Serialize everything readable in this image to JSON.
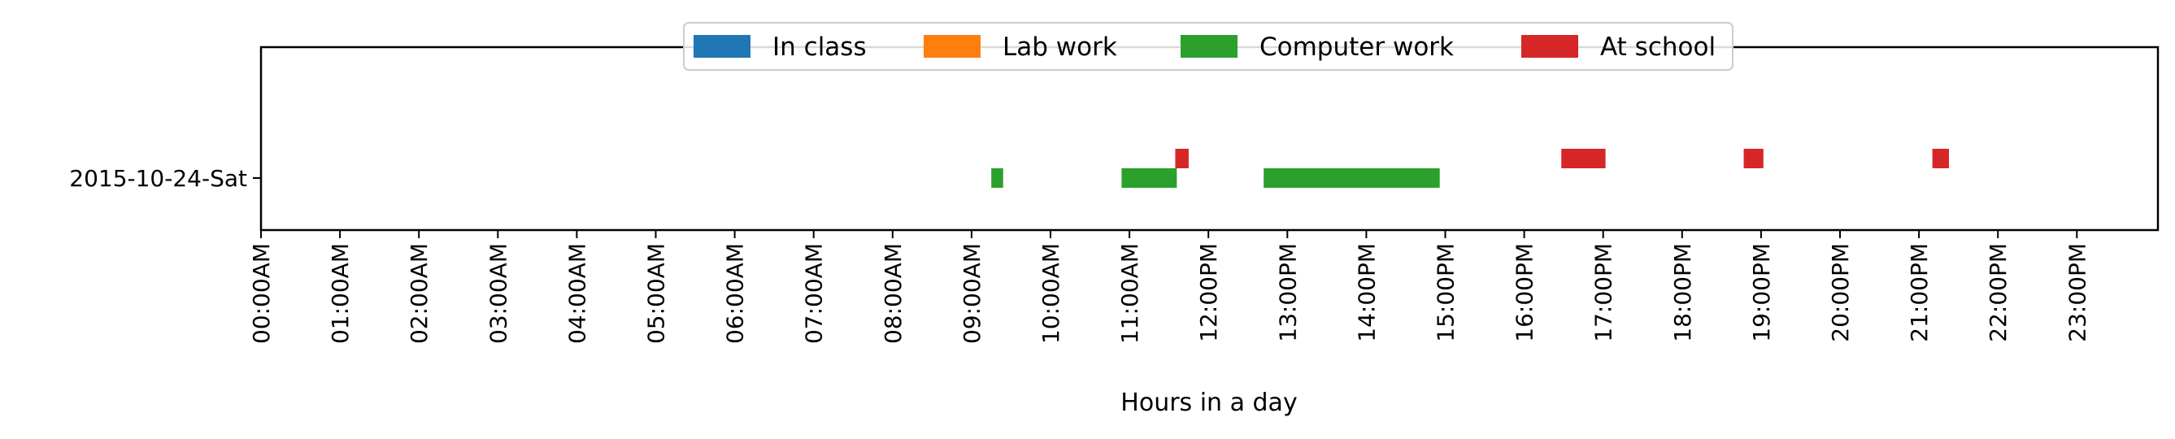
{
  "chart_data": {
    "type": "bar",
    "orientation": "horizontal-timeline",
    "xlabel": "Hours in a day",
    "ylabel": "",
    "xlim": [
      0,
      24
    ],
    "x_ticks": [
      {
        "value": 0,
        "label": "00:00AM"
      },
      {
        "value": 1,
        "label": "01:00AM"
      },
      {
        "value": 2,
        "label": "02:00AM"
      },
      {
        "value": 3,
        "label": "03:00AM"
      },
      {
        "value": 4,
        "label": "04:00AM"
      },
      {
        "value": 5,
        "label": "05:00AM"
      },
      {
        "value": 6,
        "label": "06:00AM"
      },
      {
        "value": 7,
        "label": "07:00AM"
      },
      {
        "value": 8,
        "label": "08:00AM"
      },
      {
        "value": 9,
        "label": "09:00AM"
      },
      {
        "value": 10,
        "label": "10:00AM"
      },
      {
        "value": 11,
        "label": "11:00AM"
      },
      {
        "value": 12,
        "label": "12:00PM"
      },
      {
        "value": 13,
        "label": "13:00PM"
      },
      {
        "value": 14,
        "label": "14:00PM"
      },
      {
        "value": 15,
        "label": "15:00PM"
      },
      {
        "value": 16,
        "label": "16:00PM"
      },
      {
        "value": 17,
        "label": "17:00PM"
      },
      {
        "value": 18,
        "label": "18:00PM"
      },
      {
        "value": 19,
        "label": "19:00PM"
      },
      {
        "value": 20,
        "label": "20:00PM"
      },
      {
        "value": 21,
        "label": "21:00PM"
      },
      {
        "value": 22,
        "label": "22:00PM"
      },
      {
        "value": 23,
        "label": "23:00PM"
      }
    ],
    "categories": [
      "2015-10-24-Sat"
    ],
    "legend": {
      "placement": "top-center",
      "ncol": 4
    },
    "series": [
      {
        "name": "In class",
        "color": "#1f77b4",
        "intervals": []
      },
      {
        "name": "Lab work",
        "color": "#ff7f0e",
        "intervals": []
      },
      {
        "name": "Computer work",
        "color": "#2ca02c",
        "intervals": [
          {
            "start": 9.25,
            "end": 9.4
          },
          {
            "start": 10.9,
            "end": 11.6
          },
          {
            "start": 12.7,
            "end": 14.93
          }
        ]
      },
      {
        "name": "At school",
        "color": "#d62728",
        "intervals": [
          {
            "start": 11.58,
            "end": 11.75
          },
          {
            "start": 16.47,
            "end": 17.03
          },
          {
            "start": 18.78,
            "end": 19.03
          },
          {
            "start": 21.17,
            "end": 21.38
          }
        ]
      }
    ]
  }
}
